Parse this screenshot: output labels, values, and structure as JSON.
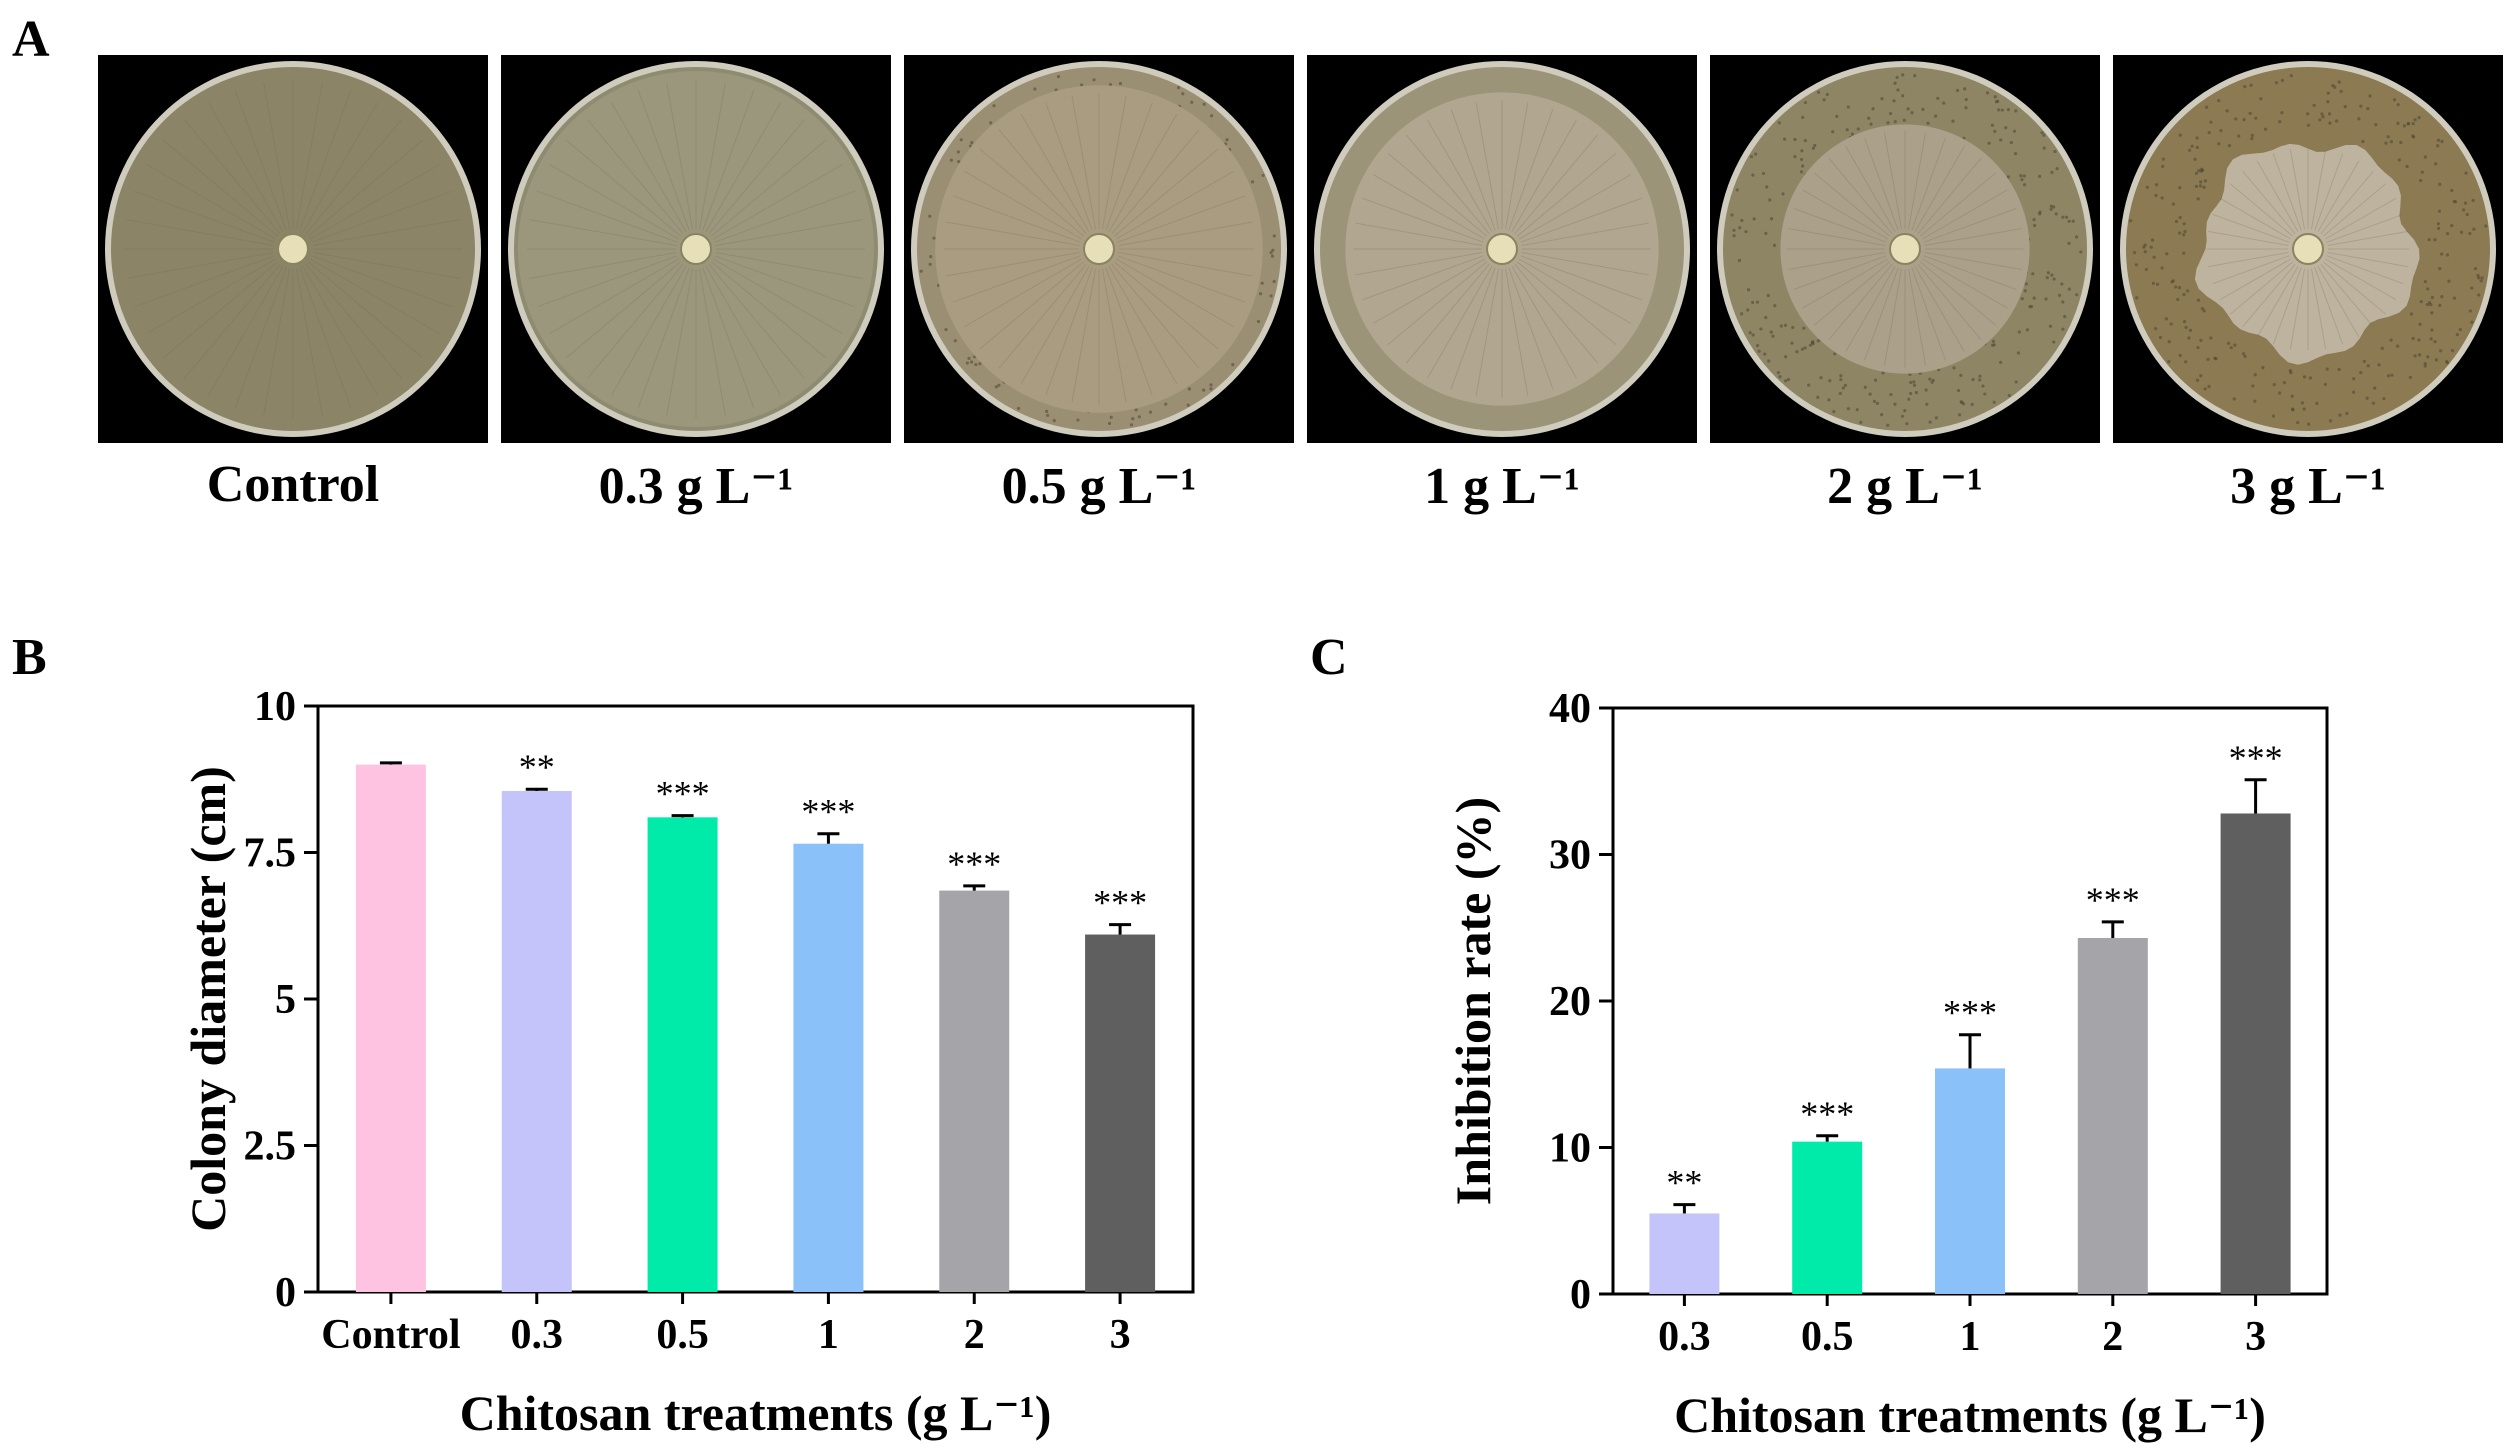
{
  "panel_labels": {
    "a": "A",
    "b": "B",
    "c": "C"
  },
  "plates": [
    {
      "label": "Control",
      "colony_fraction": 1.0,
      "outer_color": "#8b8467",
      "inner_color": "#8b8467",
      "rough_edge": false,
      "speckles": false
    },
    {
      "label": "0.3 g L⁻¹",
      "colony_fraction": 1.0,
      "outer_color": "#8d8b70",
      "inner_color": "#9a977c",
      "rough_edge": false,
      "speckles": false
    },
    {
      "label": "0.5 g L⁻¹",
      "colony_fraction": 0.92,
      "outer_color": "#9b8f73",
      "inner_color": "#a99c80",
      "rough_edge": false,
      "speckles": true
    },
    {
      "label": "1 g L⁻¹",
      "colony_fraction": 0.88,
      "outer_color": "#9c9478",
      "inner_color": "#b1a68f",
      "rough_edge": false,
      "speckles": false
    },
    {
      "label": "2 g L⁻¹",
      "colony_fraction": 0.7,
      "outer_color": "#8e8565",
      "inner_color": "#aba08a",
      "rough_edge": false,
      "speckles": true
    },
    {
      "label": "3 g L⁻¹",
      "colony_fraction": 0.6,
      "outer_color": "#8b7a52",
      "inner_color": "#bdb39e",
      "rough_edge": true,
      "speckles": true
    }
  ],
  "chart_data": [
    {
      "type": "bar",
      "panel": "B",
      "categories": [
        "Control",
        "0.3",
        "0.5",
        "1",
        "2",
        "3"
      ],
      "values": [
        9.0,
        8.55,
        8.1,
        7.65,
        6.85,
        6.1
      ],
      "errors": [
        0.03,
        0.03,
        0.03,
        0.17,
        0.08,
        0.17
      ],
      "significance": [
        "",
        "**",
        "***",
        "***",
        "***",
        "***"
      ],
      "colors": [
        "#ffc3e2",
        "#c4c4fa",
        "#00eba9",
        "#8bc1f9",
        "#a5a5a9",
        "#5f5f5f"
      ],
      "xlabel": "Chitosan treatments (g L⁻¹)",
      "ylabel": "Colony diameter (cm)",
      "ylim": [
        0,
        10
      ],
      "yticks": [
        0,
        2.5,
        5,
        7.5,
        10
      ],
      "ytick_labels": [
        "0",
        "2.5",
        "5",
        "7.5",
        "10"
      ],
      "grid": false
    },
    {
      "type": "bar",
      "panel": "C",
      "categories": [
        "0.3",
        "0.5",
        "1",
        "2",
        "3"
      ],
      "values": [
        5.5,
        10.4,
        15.4,
        24.3,
        32.8
      ],
      "errors": [
        0.6,
        0.4,
        2.3,
        1.1,
        2.3
      ],
      "significance": [
        "**",
        "***",
        "***",
        "***",
        "***"
      ],
      "colors": [
        "#c4c4fa",
        "#00eba9",
        "#8bc1f9",
        "#a5a5a9",
        "#5f5f5f"
      ],
      "xlabel": "Chitosan treatments (g L⁻¹)",
      "ylabel": "Inhibition rate (%)",
      "ylim": [
        0,
        40
      ],
      "yticks": [
        0,
        10,
        20,
        30,
        40
      ],
      "ytick_labels": [
        "0",
        "10",
        "20",
        "30",
        "40"
      ],
      "grid": false
    }
  ]
}
